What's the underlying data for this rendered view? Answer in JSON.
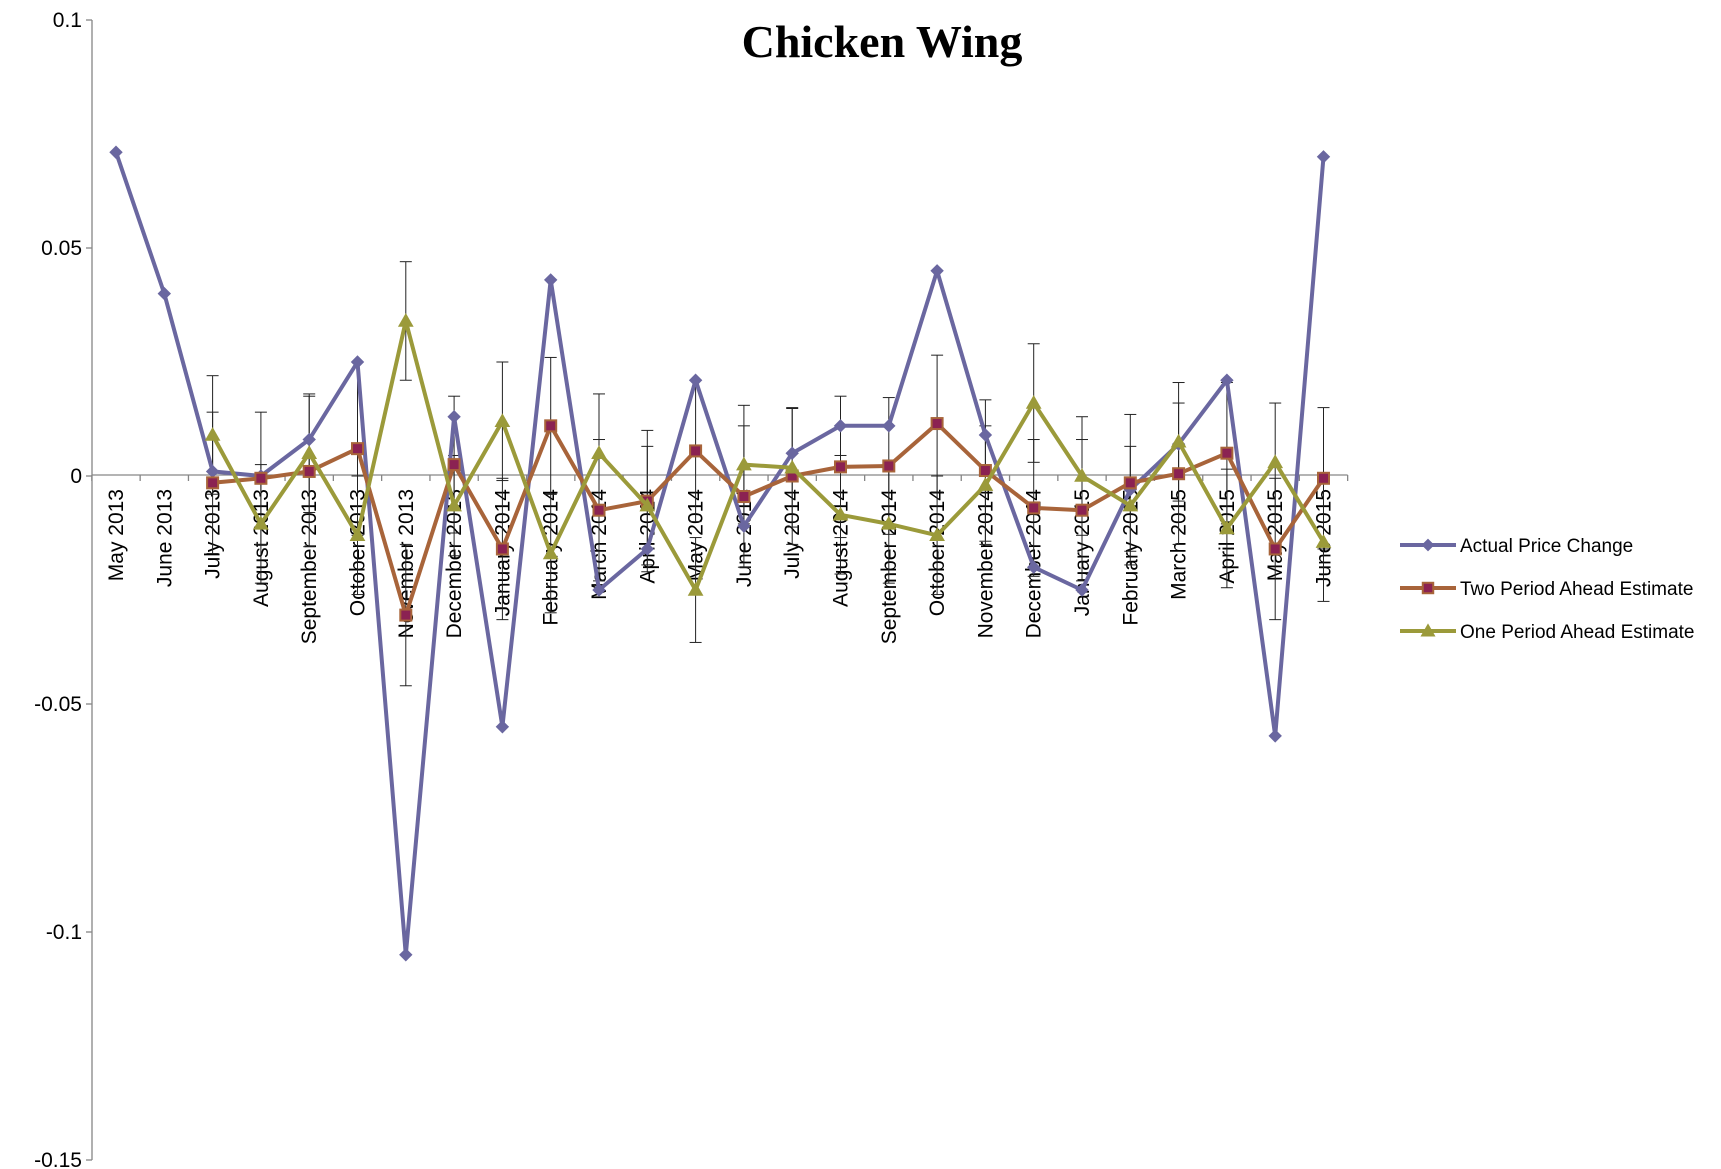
{
  "chart_data": {
    "type": "line",
    "title": "Chicken Wing",
    "xlabel": "",
    "ylabel": "",
    "ylim": [
      -0.15,
      0.1
    ],
    "yticks": [
      "0.1",
      "0.05",
      "0",
      "-0.05",
      "-0.1",
      "-0.15"
    ],
    "grid": false,
    "legend_position": "right",
    "categories": [
      "May 2013",
      "June 2013",
      "July 2013",
      "August 2013",
      "September 2013",
      "October 2013",
      "November 2013",
      "December 2013",
      "January 2014",
      "February 2014",
      "March 2014",
      "April 2014",
      "May 2014",
      "June 2014",
      "July 2014",
      "August 2014",
      "September 2014",
      "October 2014",
      "November 2014",
      "December 2014",
      "January 2015",
      "February 2015",
      "March 2015",
      "April 2015",
      "May 2015",
      "June 2015"
    ],
    "series": [
      {
        "name": "Actual Price Change",
        "color": "#6a67a0",
        "marker": "diamond",
        "values": [
          0.071,
          0.04,
          0.001,
          0.0,
          0.008,
          0.025,
          -0.105,
          0.013,
          -0.055,
          0.043,
          -0.025,
          -0.016,
          0.021,
          -0.011,
          0.005,
          0.011,
          0.011,
          0.045,
          0.009,
          -0.02,
          -0.025,
          -0.003,
          0.007,
          0.021,
          -0.057,
          0.07
        ]
      },
      {
        "name": "Two Period Ahead Estimate",
        "color": "#a8643a",
        "marker": "square",
        "marker_fill": "#8b2252",
        "values": [
          null,
          null,
          -0.0015,
          -0.0005,
          0.001,
          0.006,
          -0.0305,
          0.0025,
          -0.016,
          0.011,
          -0.0075,
          -0.0055,
          0.0055,
          -0.0045,
          0.0,
          0.002,
          0.0022,
          0.0115,
          0.0012,
          -0.007,
          -0.0075,
          -0.0015,
          0.0005,
          0.005,
          -0.016,
          -0.0005
        ],
        "error": [
          null,
          null,
          0.0155,
          0.0145,
          0.0165,
          0.019,
          0.0155,
          0.015,
          0.0155,
          0.015,
          0.0155,
          0.0155,
          0.0155,
          0.0155,
          0.015,
          0.0155,
          0.015,
          0.015,
          0.0155,
          0.015,
          0.0155,
          0.015,
          0.0155,
          0.0155,
          0.0155,
          0.0155
        ]
      },
      {
        "name": "One Period Ahead Estimate",
        "color": "#9b9a3a",
        "marker": "triangle",
        "values": [
          null,
          null,
          0.009,
          -0.0105,
          0.005,
          -0.013,
          0.034,
          -0.0065,
          0.012,
          -0.017,
          0.005,
          -0.0065,
          -0.025,
          0.0025,
          0.0018,
          -0.0085,
          -0.0105,
          -0.013,
          -0.002,
          0.016,
          0.0,
          -0.0065,
          0.0075,
          -0.0115,
          0.003,
          -0.0145
        ],
        "error": [
          null,
          null,
          0.013,
          0.013,
          0.013,
          0.013,
          0.013,
          0.011,
          0.013,
          0.013,
          0.013,
          0.013,
          0.0115,
          0.013,
          0.013,
          0.013,
          0.013,
          0.013,
          0.013,
          0.013,
          0.013,
          0.013,
          0.013,
          0.013,
          0.013,
          0.013
        ]
      }
    ]
  }
}
